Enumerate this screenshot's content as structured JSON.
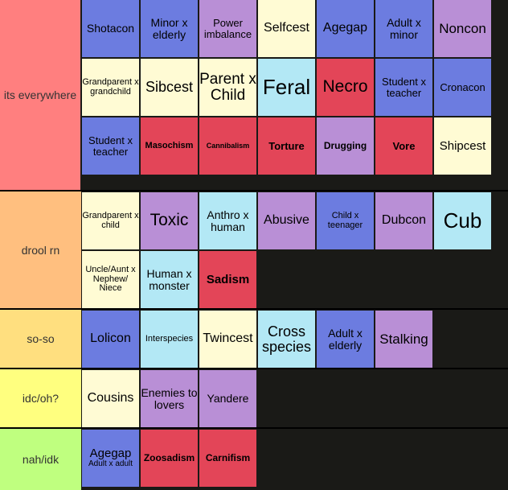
{
  "colors": {
    "tier_s": "#ff7f7f",
    "tier_a": "#ffbf7f",
    "tier_b": "#ffdf7f",
    "tier_c": "#ffff7f",
    "tier_d": "#bfff7f",
    "blue": "#6c7ce0",
    "purple": "#b98fd6",
    "cream": "#fffbd4",
    "cyan": "#b3e8f5",
    "red": "#e34558"
  },
  "tiers": [
    {
      "label": "its everywhere",
      "items": [
        {
          "text": "Shotacon",
          "color": "blue"
        },
        {
          "text": "Minor x elderly",
          "color": "blue"
        },
        {
          "text": "Power imbalance",
          "color": "purple"
        },
        {
          "text": "Selfcest",
          "color": "cream"
        },
        {
          "text": "Agegap",
          "color": "blue"
        },
        {
          "text": "Adult x minor",
          "color": "blue"
        },
        {
          "text": "Noncon",
          "color": "purple"
        },
        {
          "text": "Grandparent x grandchild",
          "color": "cream"
        },
        {
          "text": "Sibcest",
          "color": "cream"
        },
        {
          "text": "Parent x Child",
          "color": "cream"
        },
        {
          "text": "Feral",
          "color": "cyan"
        },
        {
          "text": "Necro",
          "color": "red"
        },
        {
          "text": "Student x teacher",
          "color": "blue"
        },
        {
          "text": "Cronacon",
          "color": "blue"
        },
        {
          "text": "Student x teacher",
          "color": "blue"
        },
        {
          "text": "Masochism",
          "color": "red"
        },
        {
          "text": "Cannibalism",
          "color": "red"
        },
        {
          "text": "Torture",
          "color": "red"
        },
        {
          "text": "Drugging",
          "color": "purple"
        },
        {
          "text": "Vore",
          "color": "red"
        },
        {
          "text": "Shipcest",
          "color": "cream"
        }
      ]
    },
    {
      "label": "drool rn",
      "items": [
        {
          "text": "Grandparent x child",
          "color": "cream"
        },
        {
          "text": "Toxic",
          "color": "purple"
        },
        {
          "text": "Anthro x human",
          "color": "cyan"
        },
        {
          "text": "Abusive",
          "color": "purple"
        },
        {
          "text": "Child x teenager",
          "color": "blue"
        },
        {
          "text": "Dubcon",
          "color": "purple"
        },
        {
          "text": "Cub",
          "color": "cyan"
        },
        {
          "text": "Uncle/Aunt x Nephew/ Niece",
          "color": "cream"
        },
        {
          "text": "Human x monster",
          "color": "cyan"
        },
        {
          "text": "Sadism",
          "color": "red"
        }
      ]
    },
    {
      "label": "so-so",
      "items": [
        {
          "text": "Lolicon",
          "color": "blue"
        },
        {
          "text": "Interspecies",
          "color": "cyan"
        },
        {
          "text": "Twincest",
          "color": "cream"
        },
        {
          "text": "Cross species",
          "color": "cyan"
        },
        {
          "text": "Adult x elderly",
          "color": "blue"
        },
        {
          "text": "Stalking",
          "color": "purple"
        }
      ]
    },
    {
      "label": "idc/oh?",
      "items": [
        {
          "text": "Cousins",
          "color": "cream"
        },
        {
          "text": "Enemies to lovers",
          "color": "purple"
        },
        {
          "text": "Yandere",
          "color": "purple"
        }
      ]
    },
    {
      "label": "nah/idk",
      "items": [
        {
          "text": "Agegap",
          "subtext": "Adult x adult",
          "color": "blue"
        },
        {
          "text": "Zoosadism",
          "color": "red"
        },
        {
          "text": "Carnifism",
          "color": "red"
        }
      ]
    }
  ]
}
